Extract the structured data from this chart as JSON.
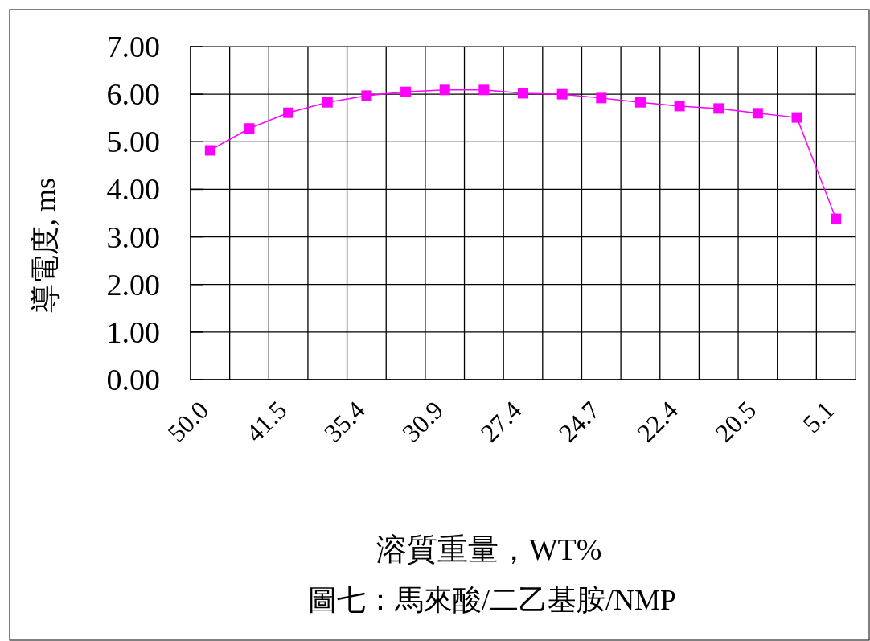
{
  "chart_data": {
    "type": "line",
    "title": "圖七：馬來酸/二乙基胺/NMP",
    "xlabel": "溶質重量，WT%",
    "ylabel": "導電度, ms",
    "categories": [
      "50.0",
      null,
      "41.5",
      null,
      "35.4",
      null,
      "30.9",
      null,
      "27.4",
      null,
      "24.7",
      null,
      "22.4",
      null,
      "20.5",
      null,
      "5.1"
    ],
    "series": [
      {
        "color": "#ff00ff",
        "values": [
          4.82,
          5.28,
          5.61,
          5.83,
          5.97,
          6.05,
          6.09,
          6.09,
          6.02,
          6.0,
          5.92,
          5.83,
          5.75,
          5.7,
          5.6,
          5.51,
          3.38
        ]
      }
    ],
    "ylim": [
      0,
      7
    ],
    "yticks": [
      {
        "value": 0,
        "label": "0.00"
      },
      {
        "value": 1,
        "label": "1.00"
      },
      {
        "value": 2,
        "label": "2.00"
      },
      {
        "value": 3,
        "label": "3.00"
      },
      {
        "value": 4,
        "label": "4.00"
      },
      {
        "value": 5,
        "label": "5.00"
      },
      {
        "value": 6,
        "label": "6.00"
      },
      {
        "value": 7,
        "label": "7.00"
      }
    ],
    "grid": true,
    "marker": "square",
    "line_style": "solid"
  }
}
